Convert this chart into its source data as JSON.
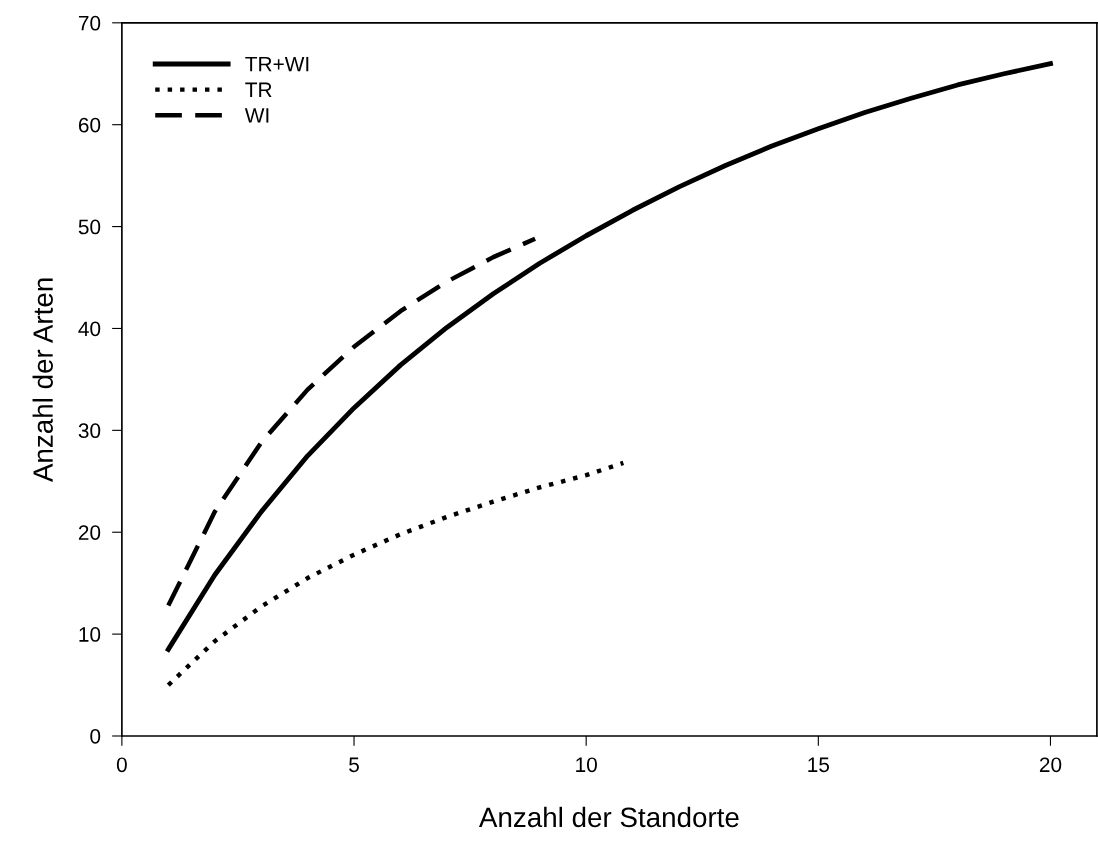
{
  "chart_data": {
    "type": "line",
    "xlabel": "Anzahl der Standorte",
    "ylabel": "Anzahl der Arten",
    "xlim": [
      0,
      21
    ],
    "ylim": [
      0,
      70
    ],
    "xticks": [
      0,
      5,
      10,
      15,
      20
    ],
    "yticks": [
      0,
      10,
      20,
      30,
      40,
      50,
      60,
      70
    ],
    "grid": false,
    "legend": "top left",
    "marker": "none",
    "series": [
      {
        "name": "TR+WI",
        "color": "#000000",
        "line_style": "solid",
        "x": [
          1,
          2,
          3,
          4,
          5,
          6,
          7,
          8,
          9,
          10,
          11,
          12,
          13,
          14,
          15,
          16,
          17,
          18,
          19,
          20
        ],
        "values": [
          8.5,
          15.8,
          22,
          27.5,
          32.2,
          36.4,
          40.1,
          43.4,
          46.4,
          49.1,
          51.6,
          53.9,
          56,
          57.9,
          59.6,
          61.2,
          62.6,
          63.9,
          65,
          66
        ]
      },
      {
        "name": "TR",
        "color": "#000000",
        "line_style": "dotted",
        "x": [
          1,
          2,
          3,
          4,
          5,
          6,
          7,
          8,
          9,
          10,
          10.8
        ],
        "values": [
          5,
          9.3,
          12.7,
          15.5,
          17.8,
          19.8,
          21.5,
          23,
          24.4,
          25.6,
          26.8
        ]
      },
      {
        "name": "WI",
        "color": "#000000",
        "line_style": "dashed",
        "x": [
          1,
          2,
          3,
          4,
          5,
          6,
          7,
          8,
          8.9
        ],
        "values": [
          12.8,
          22,
          28.8,
          34,
          38.2,
          41.7,
          44.6,
          47,
          48.8
        ]
      }
    ]
  }
}
